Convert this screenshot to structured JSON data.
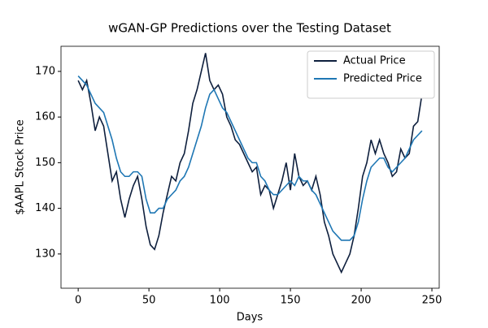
{
  "chart_data": {
    "type": "line",
    "title": "wGAN-GP Predictions over the Testing Dataset",
    "x_label": "Days",
    "y_label": "$AAPL Stock Price",
    "x": [
      0,
      3,
      6,
      9,
      12,
      15,
      18,
      21,
      24,
      27,
      30,
      33,
      36,
      39,
      42,
      45,
      48,
      51,
      54,
      57,
      60,
      63,
      66,
      69,
      72,
      75,
      78,
      81,
      84,
      87,
      90,
      93,
      96,
      99,
      102,
      105,
      108,
      111,
      114,
      117,
      120,
      123,
      126,
      129,
      132,
      135,
      138,
      141,
      144,
      147,
      150,
      153,
      156,
      159,
      162,
      165,
      168,
      171,
      174,
      177,
      180,
      183,
      186,
      189,
      192,
      195,
      198,
      201,
      204,
      207,
      210,
      213,
      216,
      219,
      222,
      225,
      228,
      231,
      234,
      237,
      240,
      243
    ],
    "series": [
      {
        "name": "Actual Price",
        "color": "#0e1f3d",
        "values": [
          168,
          166,
          168,
          163,
          157,
          160,
          158,
          152,
          146,
          148,
          142,
          138,
          142,
          145,
          147,
          142,
          136,
          132,
          131,
          134,
          139,
          143,
          147,
          146,
          150,
          152,
          157,
          163,
          166,
          170,
          174,
          168,
          166,
          167,
          165,
          160,
          158,
          155,
          154,
          152,
          150,
          148,
          149,
          143,
          145,
          144,
          140,
          143,
          146,
          150,
          144,
          152,
          147,
          145,
          146,
          144,
          147,
          143,
          137,
          134,
          130,
          128,
          126,
          128,
          130,
          134,
          140,
          147,
          150,
          155,
          152,
          155,
          152,
          150,
          147,
          148,
          153,
          151,
          152,
          158,
          159,
          165
        ]
      },
      {
        "name": "Predicted Price",
        "color": "#1f77b4",
        "values": [
          169,
          168,
          167,
          165,
          163,
          162,
          161,
          158,
          155,
          151,
          148,
          147,
          147,
          148,
          148,
          147,
          142,
          139,
          139,
          140,
          140,
          142,
          143,
          144,
          146,
          147,
          149,
          152,
          155,
          158,
          162,
          165,
          166,
          164,
          162,
          161,
          159,
          157,
          155,
          153,
          151,
          150,
          150,
          147,
          146,
          144,
          143,
          143,
          144,
          145,
          146,
          145,
          147,
          146,
          146,
          144,
          143,
          141,
          139,
          137,
          135,
          134,
          133,
          133,
          133,
          134,
          137,
          142,
          146,
          149,
          150,
          151,
          151,
          149,
          148,
          149,
          150,
          151,
          153,
          155,
          156,
          157
        ]
      }
    ],
    "xlim": [
      -12.15,
      255.15
    ],
    "ylim": [
      122.5,
      175.5
    ],
    "xticks": [
      0,
      50,
      100,
      150,
      200,
      250
    ],
    "yticks": [
      130,
      140,
      150,
      160,
      170
    ],
    "legend": "upper right"
  }
}
